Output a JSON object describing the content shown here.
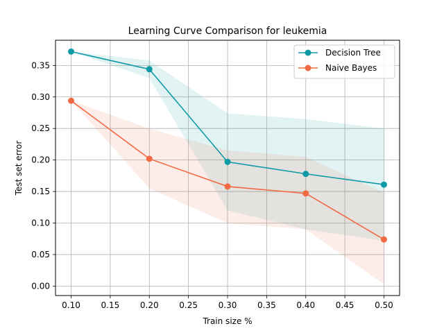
{
  "chart_data": {
    "type": "line",
    "title": "Learning Curve Comparison for leukemia",
    "xlabel": "Train size %",
    "ylabel": "Test set error",
    "xlim": [
      0.08,
      0.52
    ],
    "ylim": [
      -0.015,
      0.39
    ],
    "x_ticks": [
      "0.10",
      "0.15",
      "0.20",
      "0.25",
      "0.30",
      "0.35",
      "0.40",
      "0.45",
      "0.50"
    ],
    "y_ticks": [
      "0.00",
      "0.05",
      "0.10",
      "0.15",
      "0.20",
      "0.25",
      "0.30",
      "0.35"
    ],
    "grid": true,
    "legend_position": "top-right",
    "x": [
      0.1,
      0.2,
      0.3,
      0.4,
      0.5
    ],
    "series": [
      {
        "name": "Decision Tree",
        "color": "#0e9aa7",
        "band_color": "#0e9aa7",
        "values": [
          0.372,
          0.344,
          0.197,
          0.178,
          0.161
        ],
        "lower": [
          0.372,
          0.33,
          0.12,
          0.09,
          0.072
        ],
        "upper": [
          0.372,
          0.358,
          0.274,
          0.265,
          0.25
        ]
      },
      {
        "name": "Naive Bayes",
        "color": "#f26a43",
        "band_color": "#f26a43",
        "values": [
          0.294,
          0.202,
          0.158,
          0.147,
          0.074
        ],
        "lower": [
          0.294,
          0.155,
          0.1,
          0.09,
          0.003
        ],
        "upper": [
          0.294,
          0.25,
          0.215,
          0.205,
          0.148
        ]
      }
    ]
  }
}
